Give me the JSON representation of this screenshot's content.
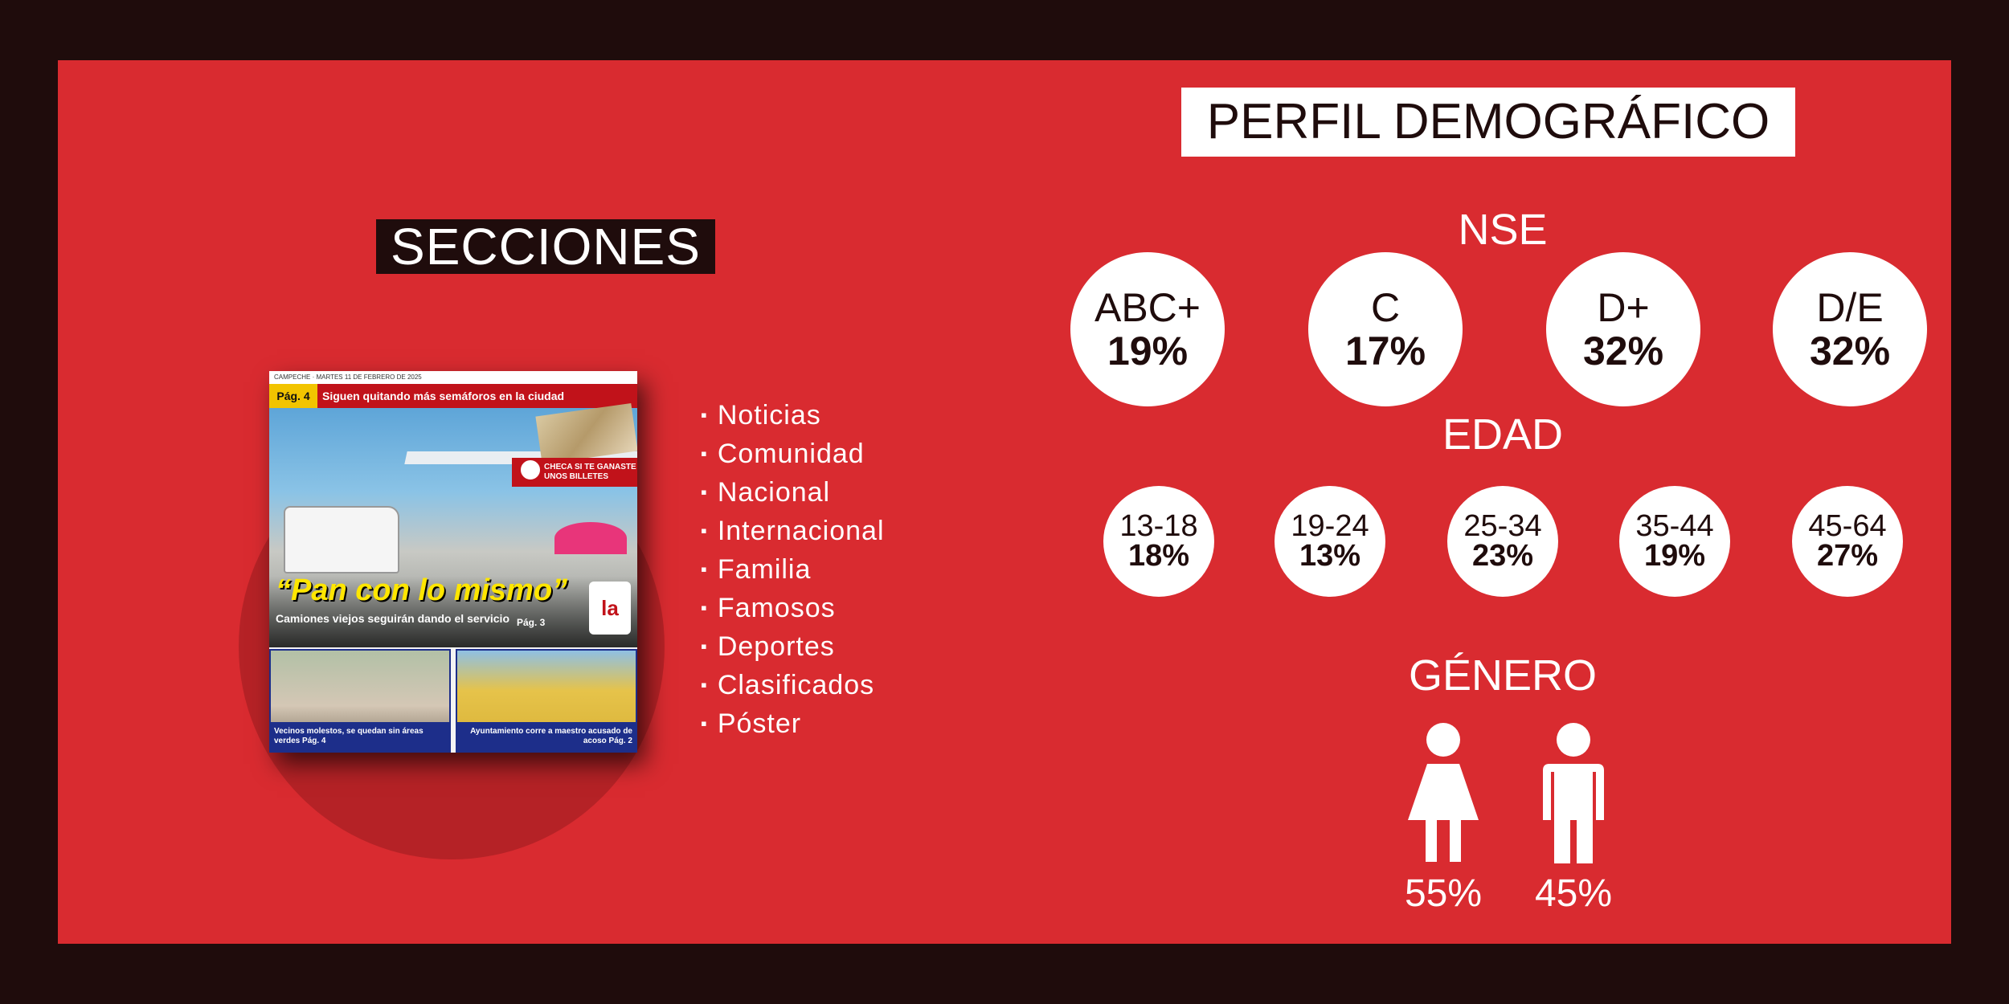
{
  "secciones": {
    "title": "SECCIONES",
    "items": [
      "Noticias",
      "Comunidad",
      "Nacional",
      "Internacional",
      "Familia",
      "Famosos",
      "Deportes",
      "Clasificados",
      "Póster"
    ]
  },
  "cover": {
    "topline": "CAMPECHE · MARTES 11 DE FEBRERO DE 2025",
    "page_tag": "Pág. 4",
    "headline": "Siguen quitando más semáforos en la ciudad",
    "badge": "CHECA SI TE GANASTE UNOS BILLETES",
    "main_headline": "“Pan con lo mismo”",
    "main_sub": "Camiones viejos seguirán dando el servicio",
    "main_page": "Pág. 3",
    "logo": "la",
    "bottom_left": "Vecinos molestos, se quedan sin áreas verdes  Pág. 4",
    "bottom_right": "Ayuntamiento corre a maestro acusado de acoso  Pág. 2"
  },
  "perfil": {
    "title": "PERFIL DEMOGRÁFICO",
    "nse": {
      "label": "NSE",
      "items": [
        {
          "label": "ABC+",
          "value": "19%"
        },
        {
          "label": "C",
          "value": "17%"
        },
        {
          "label": "D+",
          "value": "32%"
        },
        {
          "label": "D/E",
          "value": "32%"
        }
      ]
    },
    "edad": {
      "label": "EDAD",
      "items": [
        {
          "label": "13-18",
          "value": "18%"
        },
        {
          "label": "19-24",
          "value": "13%"
        },
        {
          "label": "25-34",
          "value": "23%"
        },
        {
          "label": "35-44",
          "value": "19%"
        },
        {
          "label": "45-64",
          "value": "27%"
        }
      ]
    },
    "genero": {
      "label": "GÉNERO",
      "female": "55%",
      "male": "45%"
    }
  },
  "colors": {
    "background": "#d92b30",
    "frame": "#1f0c0c",
    "circle": "#ffffff"
  }
}
